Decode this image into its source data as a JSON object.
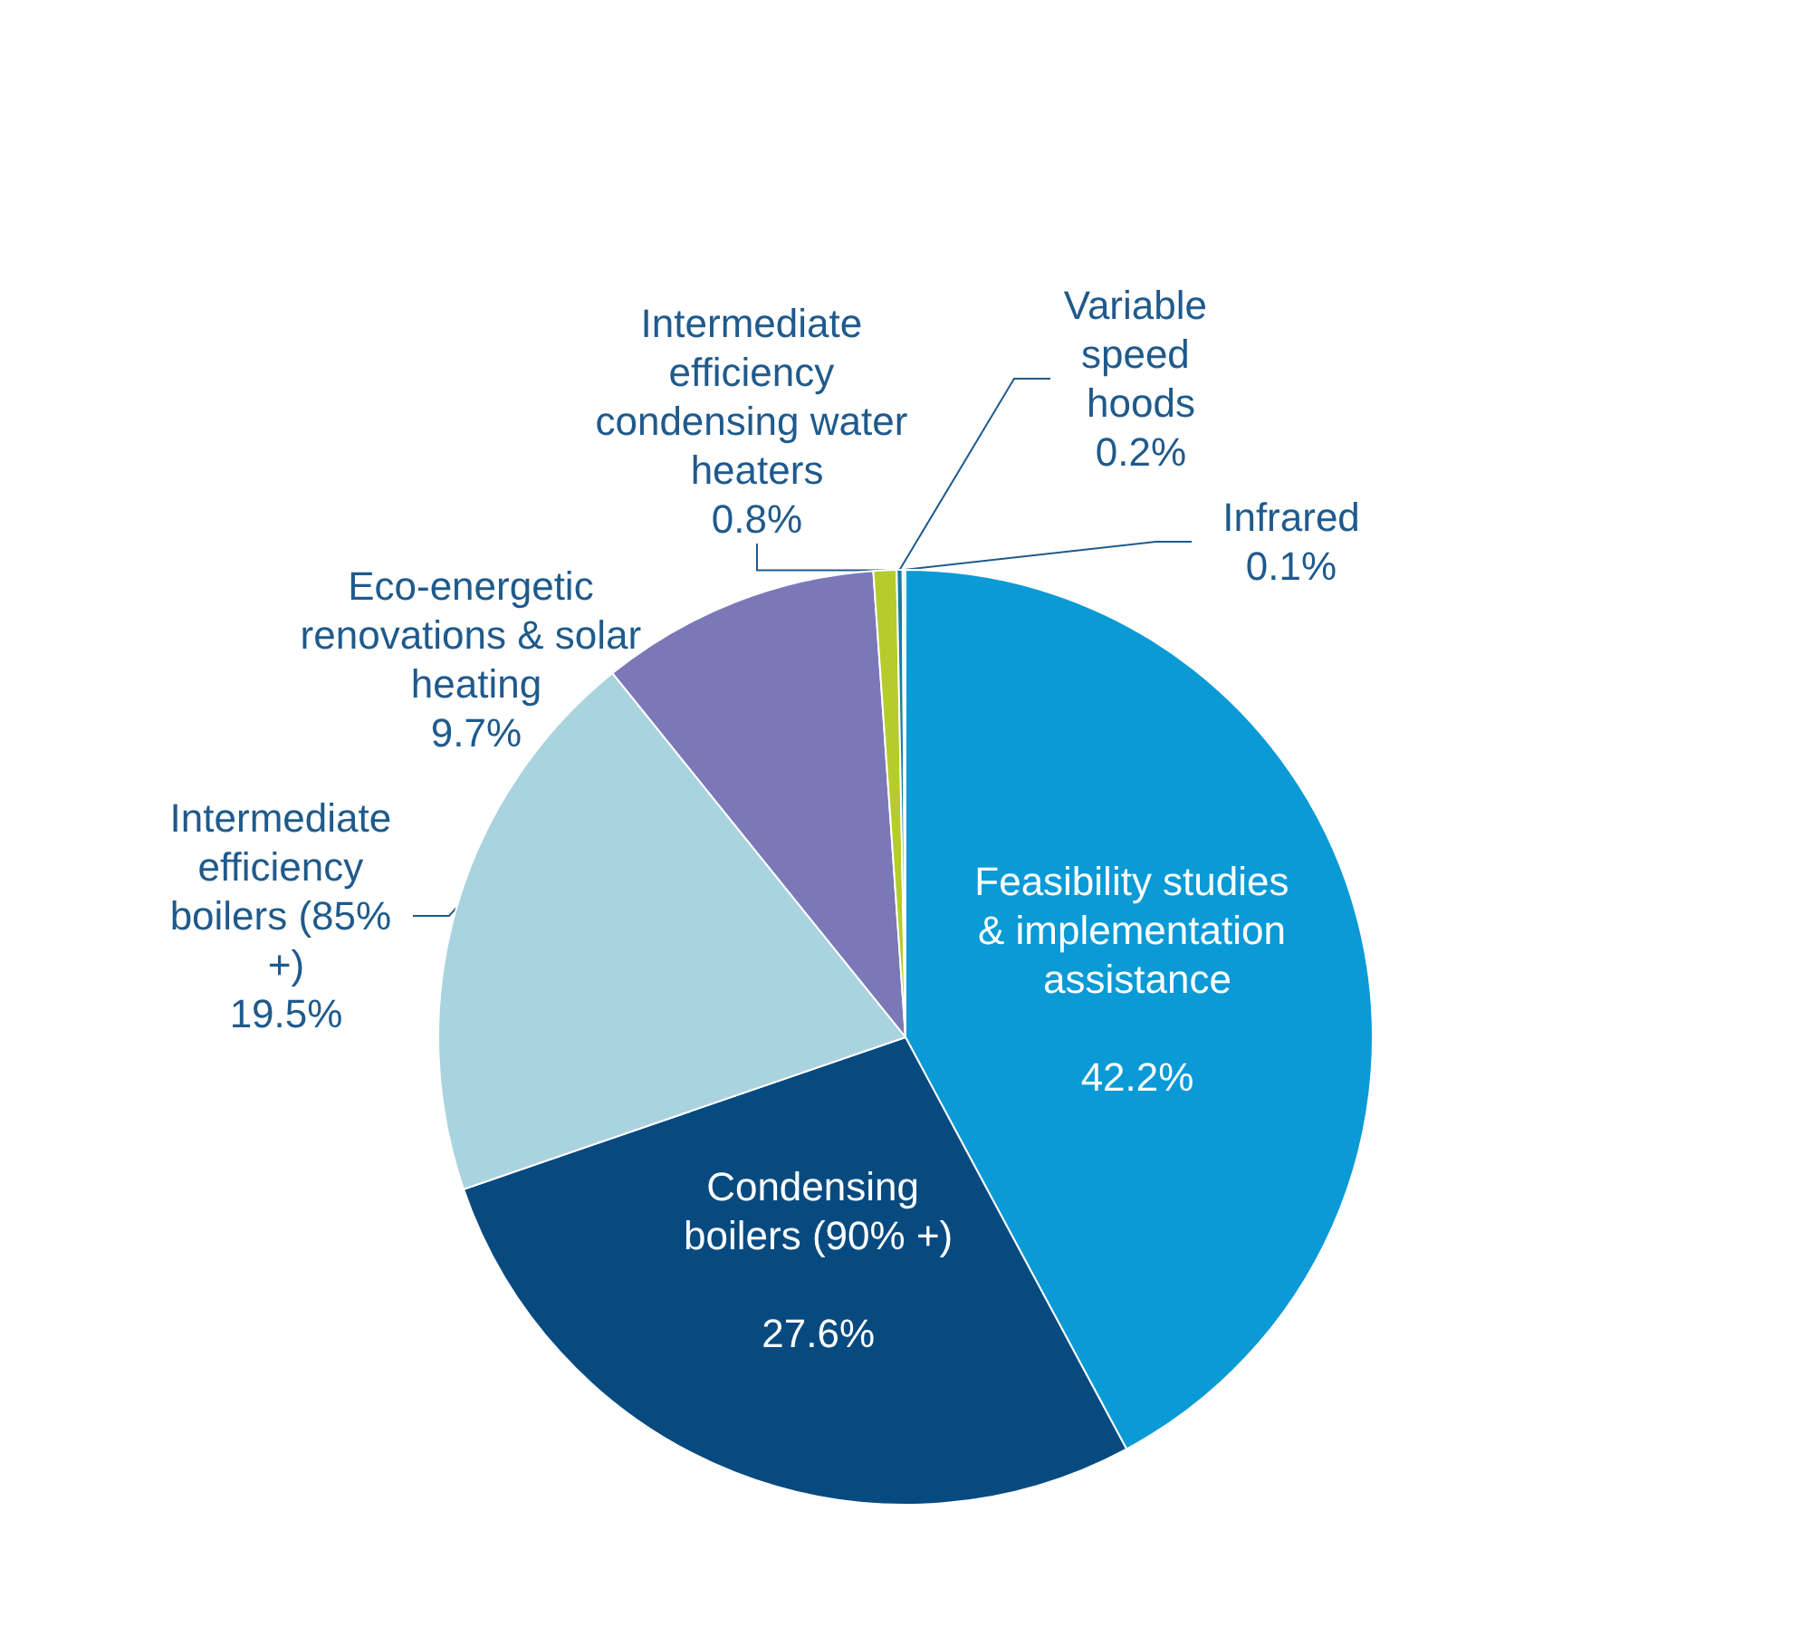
{
  "chart_data": {
    "type": "pie",
    "categories": [
      "Feasibility studies & implementation assistance",
      "Condensing boilers (90% +)",
      "Intermediate efficiency boilers (85% +)",
      "Eco-energetic renovations & solar heating",
      "Intermediate efficiency condensing water heaters",
      "Variable speed hoods",
      "Infrared"
    ],
    "values": [
      42.2,
      27.6,
      19.5,
      9.7,
      0.8,
      0.2,
      0.1
    ],
    "value_labels": [
      "42.2%",
      "27.6%",
      "19.5%",
      "9.7%",
      "0.8%",
      "0.2%",
      "0.1%"
    ],
    "colors": [
      "#0a9ad6",
      "#074a80",
      "#a9d3df",
      "#7b78b8",
      "#b6cc2c",
      "#167da0",
      "#e6f2f8"
    ]
  }
}
